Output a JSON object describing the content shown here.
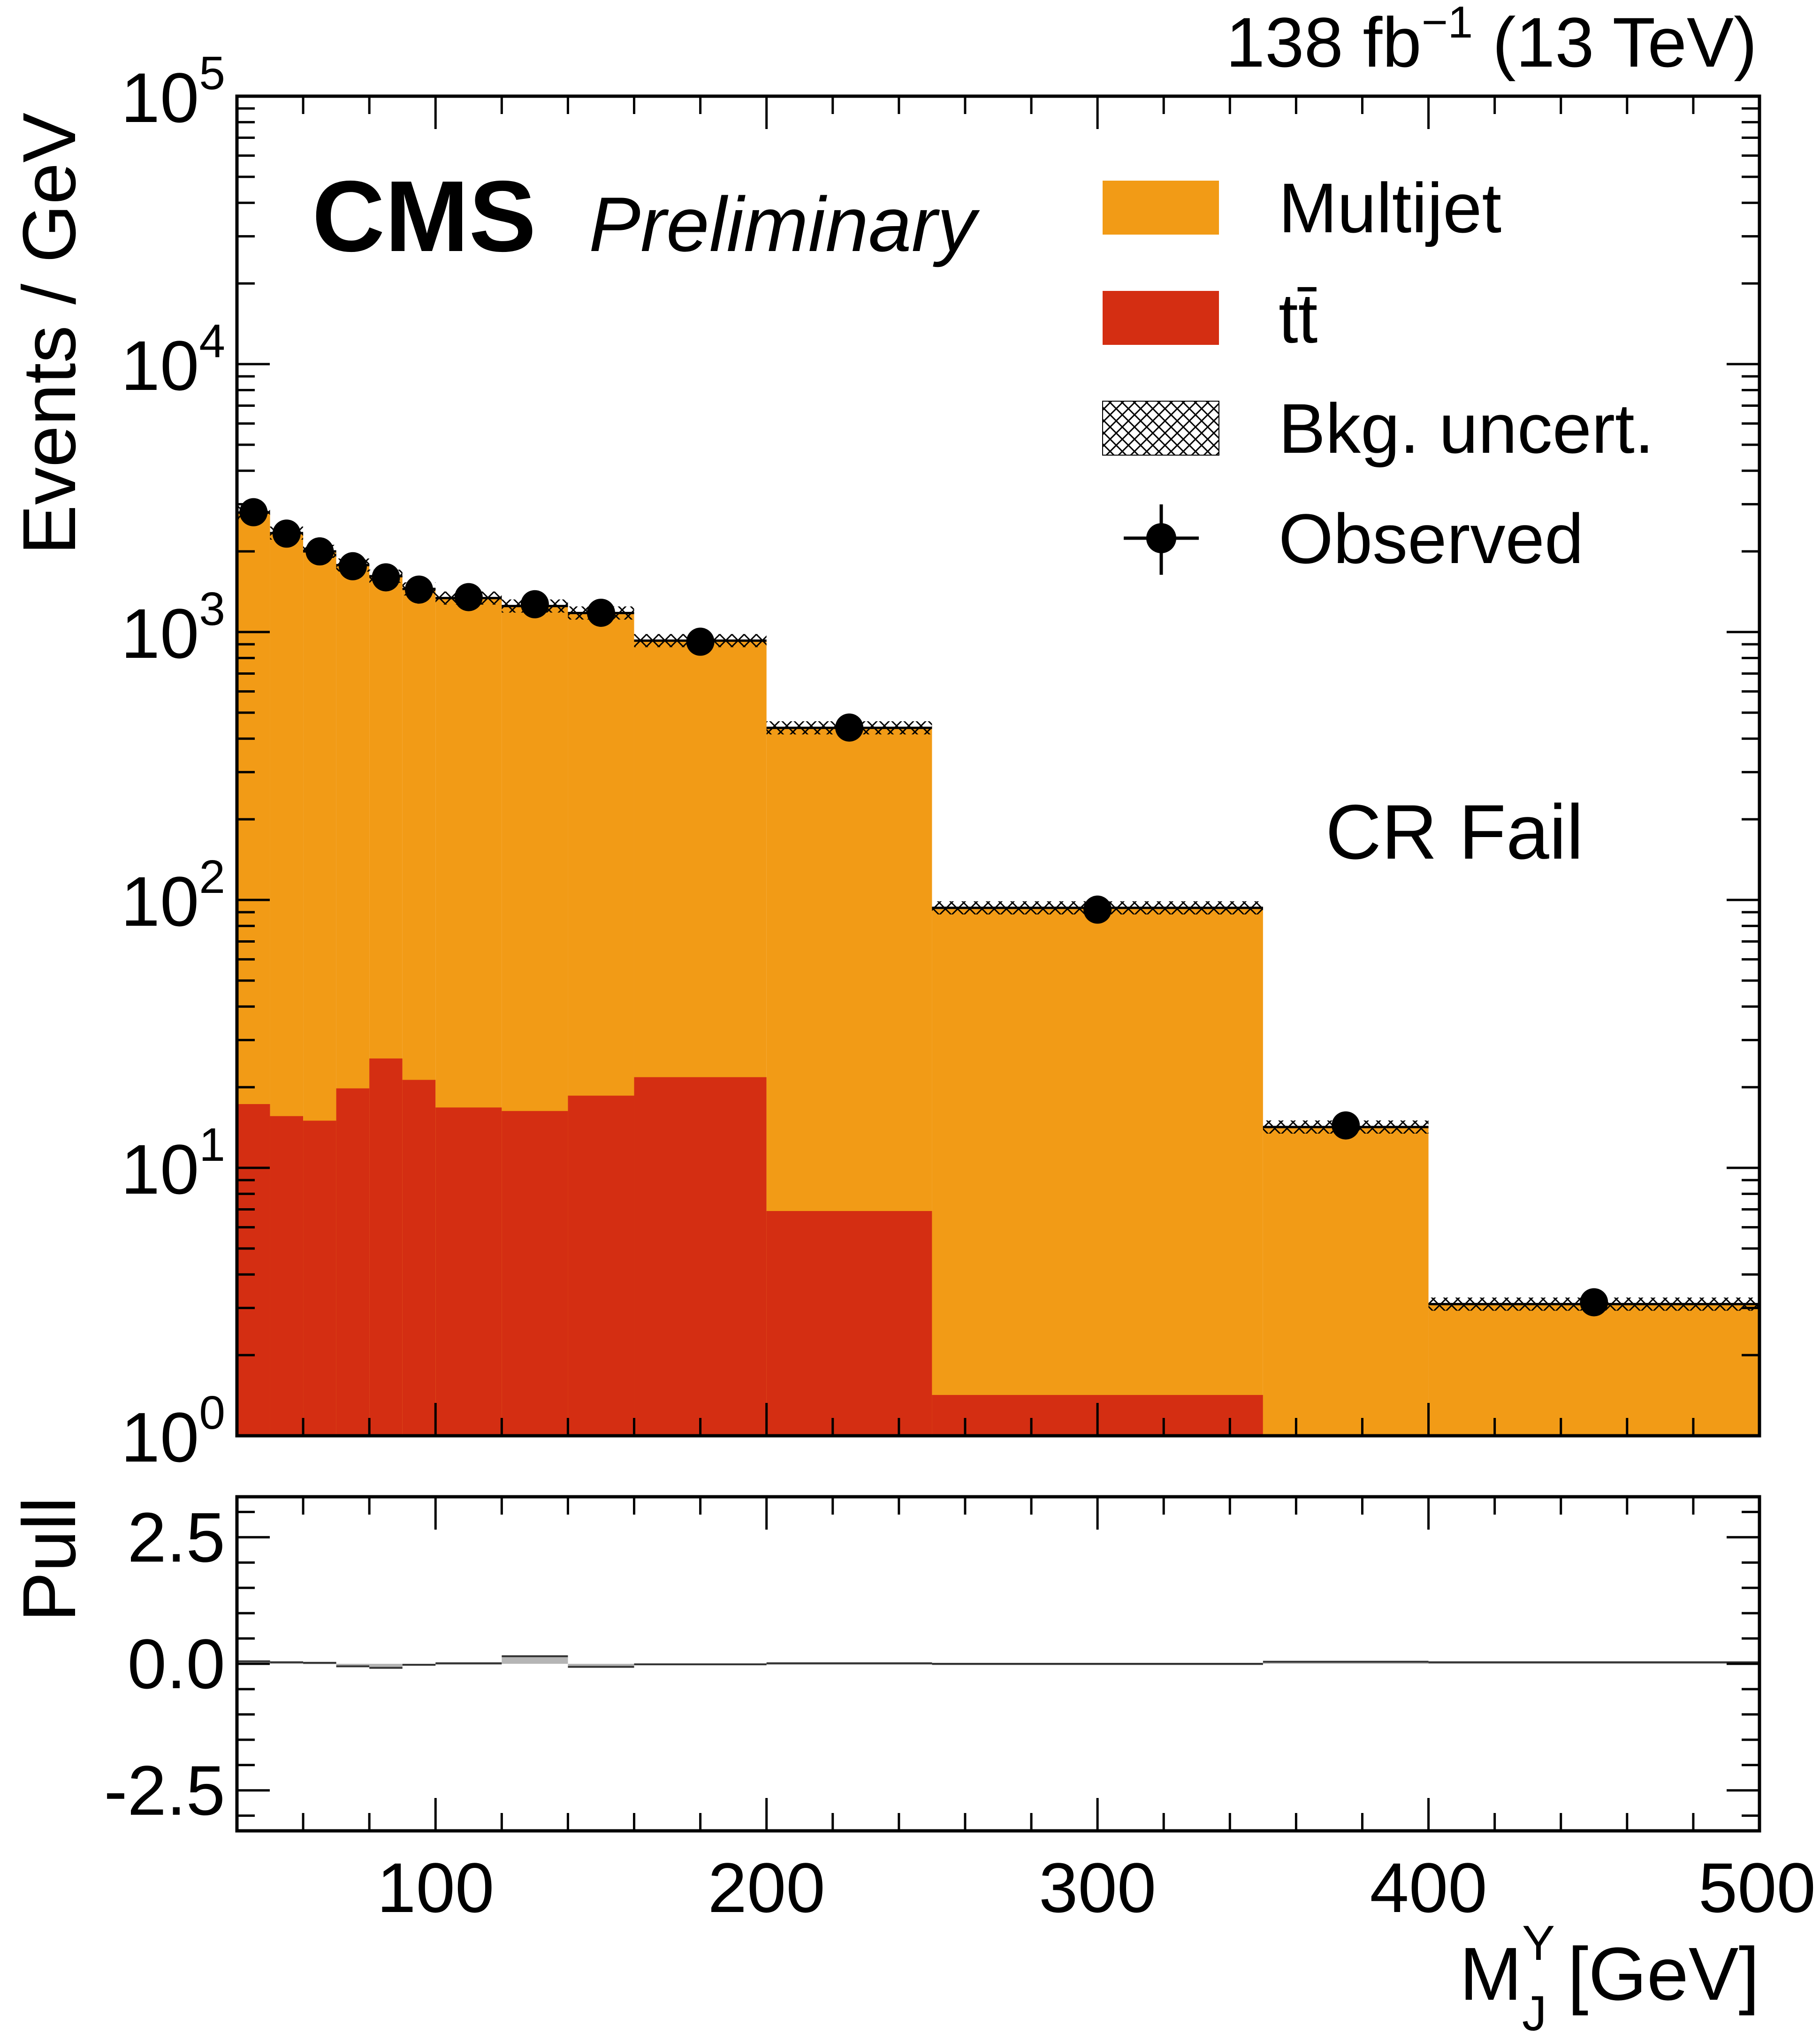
{
  "header": {
    "lumi": "138 fb",
    "lumi_exp": "−1",
    "energy": " (13 TeV)"
  },
  "labels": {
    "cms": "CMS",
    "preliminary": "Preliminary",
    "region": "CR Fail"
  },
  "colors": {
    "multijet": "#f29b16",
    "ttbar": "#d42e12",
    "pull_fill": "#b5b5b5"
  },
  "chart_data": [
    {
      "type": "bar",
      "stacked": true,
      "log_y": true,
      "ylabel": "Events / GeV",
      "ylim": [
        1,
        100000
      ],
      "xlim": [
        40,
        500
      ],
      "y_ticks": [
        {
          "base": "10",
          "exp": "0",
          "value": 1
        },
        {
          "base": "10",
          "exp": "1",
          "value": 10
        },
        {
          "base": "10",
          "exp": "2",
          "value": 100
        },
        {
          "base": "10",
          "exp": "3",
          "value": 1000
        },
        {
          "base": "10",
          "exp": "4",
          "value": 10000
        },
        {
          "base": "10",
          "exp": "5",
          "value": 100000
        }
      ],
      "bin_edges": [
        40,
        50,
        60,
        70,
        80,
        90,
        100,
        120,
        140,
        160,
        200,
        250,
        350,
        400,
        500
      ],
      "series": [
        {
          "name": "Multijet",
          "values": [
            2775,
            2325,
            1985,
            1758,
            1590,
            1427,
            1322,
            1234,
            1159,
            907,
            432,
            92,
            14.2,
            3.1
          ]
        },
        {
          "name": "tt̄",
          "values": [
            17.3,
            15.6,
            15.0,
            19.8,
            25.6,
            21.3,
            16.8,
            16.3,
            18.6,
            21.8,
            6.9,
            1.42,
            0,
            0
          ]
        }
      ],
      "uncertainty": {
        "name": "Bkg. uncert."
      },
      "observed": {
        "name": "Observed",
        "x": [
          45,
          55,
          65,
          75,
          85,
          95,
          110,
          130,
          150,
          180,
          225,
          300,
          375,
          450
        ],
        "y": [
          2800,
          2330,
          2000,
          1760,
          1600,
          1440,
          1350,
          1270,
          1180,
          920,
          440,
          92,
          14.4,
          3.15
        ]
      },
      "legend": {
        "position": "top-right",
        "entries": [
          "Multijet",
          "tt̄",
          "Bkg. uncert.",
          "Observed"
        ]
      }
    },
    {
      "type": "bar",
      "ylabel": "Pull",
      "xlabel": "M",
      "xlabel_sup": "Y",
      "xlabel_sub": "J",
      "xlabel_unit": " [GeV]",
      "ylim": [
        -3.3,
        3.3
      ],
      "xlim": [
        40,
        500
      ],
      "y_ticks": [
        {
          "label": "2.5",
          "value": 2.5
        },
        {
          "label": "0.0",
          "value": 0
        },
        {
          "label": "-2.5",
          "value": -2.5
        }
      ],
      "x_ticks": [
        {
          "label": "100",
          "value": 100
        },
        {
          "label": "200",
          "value": 200
        },
        {
          "label": "300",
          "value": 300
        },
        {
          "label": "400",
          "value": 400
        },
        {
          "label": "500",
          "value": 500
        }
      ],
      "bin_edges": [
        40,
        50,
        60,
        70,
        80,
        90,
        100,
        120,
        140,
        160,
        200,
        250,
        350,
        400,
        500
      ],
      "values": [
        0.05,
        0.03,
        0.02,
        -0.05,
        -0.08,
        -0.02,
        0.01,
        0.15,
        -0.06,
        -0.01,
        0.01,
        0.0,
        0.04,
        0.03
      ]
    }
  ]
}
